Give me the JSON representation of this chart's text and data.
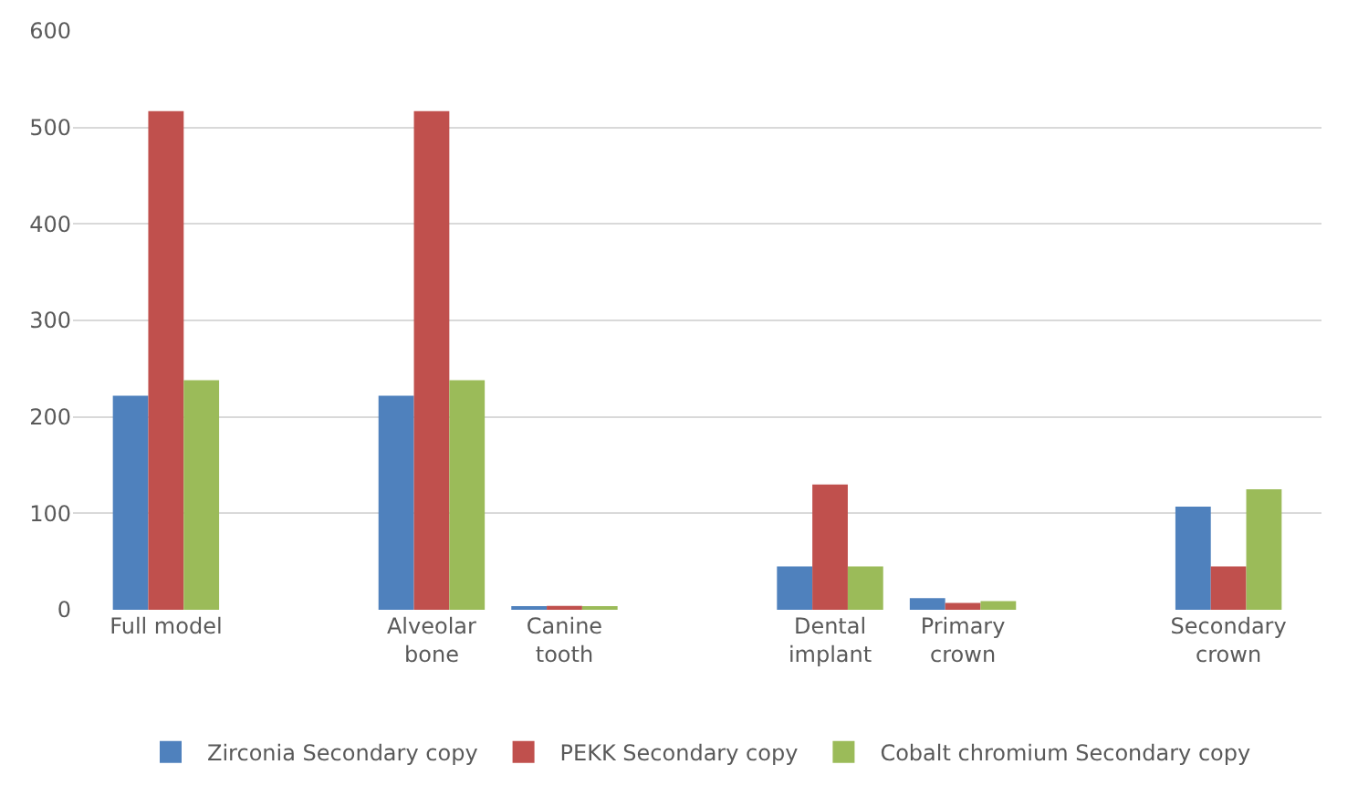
{
  "chart_data": {
    "type": "bar",
    "categories": [
      "Full model",
      null,
      "Alveolar\nbone",
      "Canine\ntooth",
      null,
      "Dental\nimplant",
      "Primary\ncrown",
      null,
      "Secondary\ncrown"
    ],
    "series": [
      {
        "name": "Zirconia Secondary copy",
        "color": "#4f81bd",
        "values": [
          222,
          null,
          222,
          2,
          null,
          45,
          12,
          null,
          107
        ]
      },
      {
        "name": "PEKK Secondary copy",
        "color": "#c0504d",
        "values": [
          517,
          null,
          517,
          4,
          null,
          130,
          7,
          null,
          45
        ]
      },
      {
        "name": "Cobalt chromium Secondary copy",
        "color": "#9bbb59",
        "values": [
          238,
          null,
          238,
          2,
          null,
          45,
          9,
          null,
          125
        ]
      }
    ],
    "ylim": [
      0,
      600
    ],
    "yticks": [
      0,
      100,
      200,
      300,
      400,
      500,
      600
    ],
    "grid": "y",
    "legend": "bottom"
  }
}
